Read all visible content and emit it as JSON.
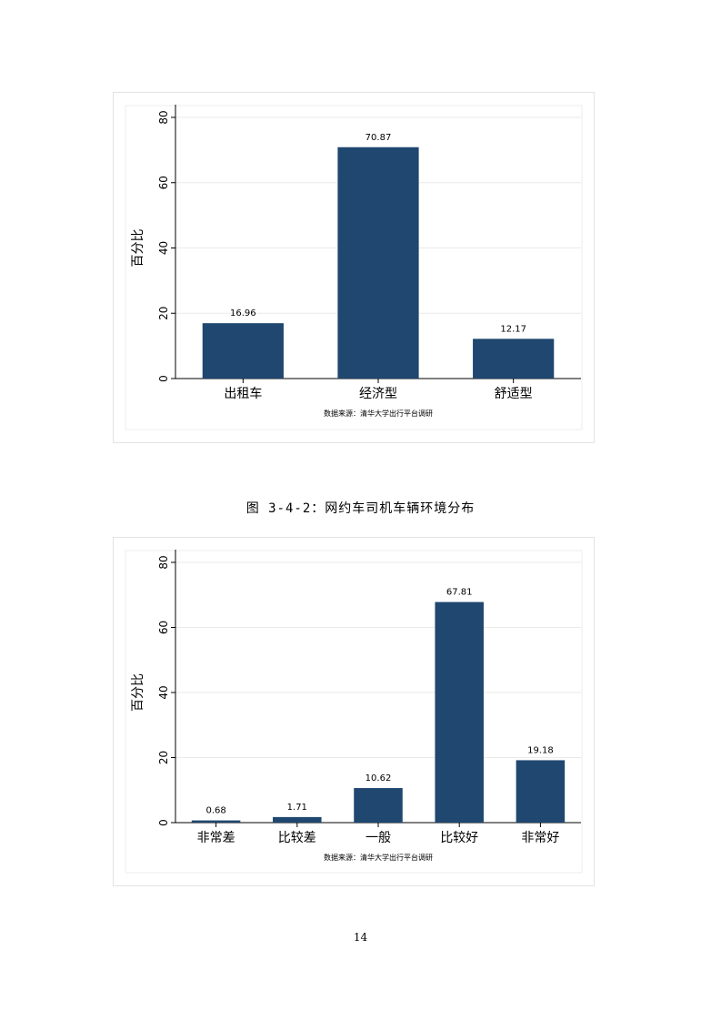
{
  "caption": "图 3-4-2：网约车司机车辆环境分布",
  "page_number": "14",
  "colors": {
    "bar": "#1f4770",
    "grid": "#eaeaea"
  },
  "chart_data": [
    {
      "type": "bar",
      "categories": [
        "出租车",
        "经济型",
        "舒适型"
      ],
      "values": [
        16.96,
        70.87,
        12.17
      ],
      "value_labels": [
        "16.96",
        "70.87",
        "12.17"
      ],
      "ylabel": "百分比",
      "ylim": [
        0,
        80
      ],
      "yticks": [
        "0",
        "20",
        "40",
        "60",
        "80"
      ],
      "grid": true,
      "source_note": "数据来源：清华大学出行平台调研"
    },
    {
      "type": "bar",
      "categories": [
        "非常差",
        "比较差",
        "一般",
        "比较好",
        "非常好"
      ],
      "values": [
        0.68,
        1.71,
        10.62,
        67.81,
        19.18
      ],
      "value_labels": [
        "0.68",
        "1.71",
        "10.62",
        "67.81",
        "19.18"
      ],
      "ylabel": "百分比",
      "ylim": [
        0,
        80
      ],
      "yticks": [
        "0",
        "20",
        "40",
        "60",
        "80"
      ],
      "grid": true,
      "source_note": "数据来源：清华大学出行平台调研"
    }
  ]
}
